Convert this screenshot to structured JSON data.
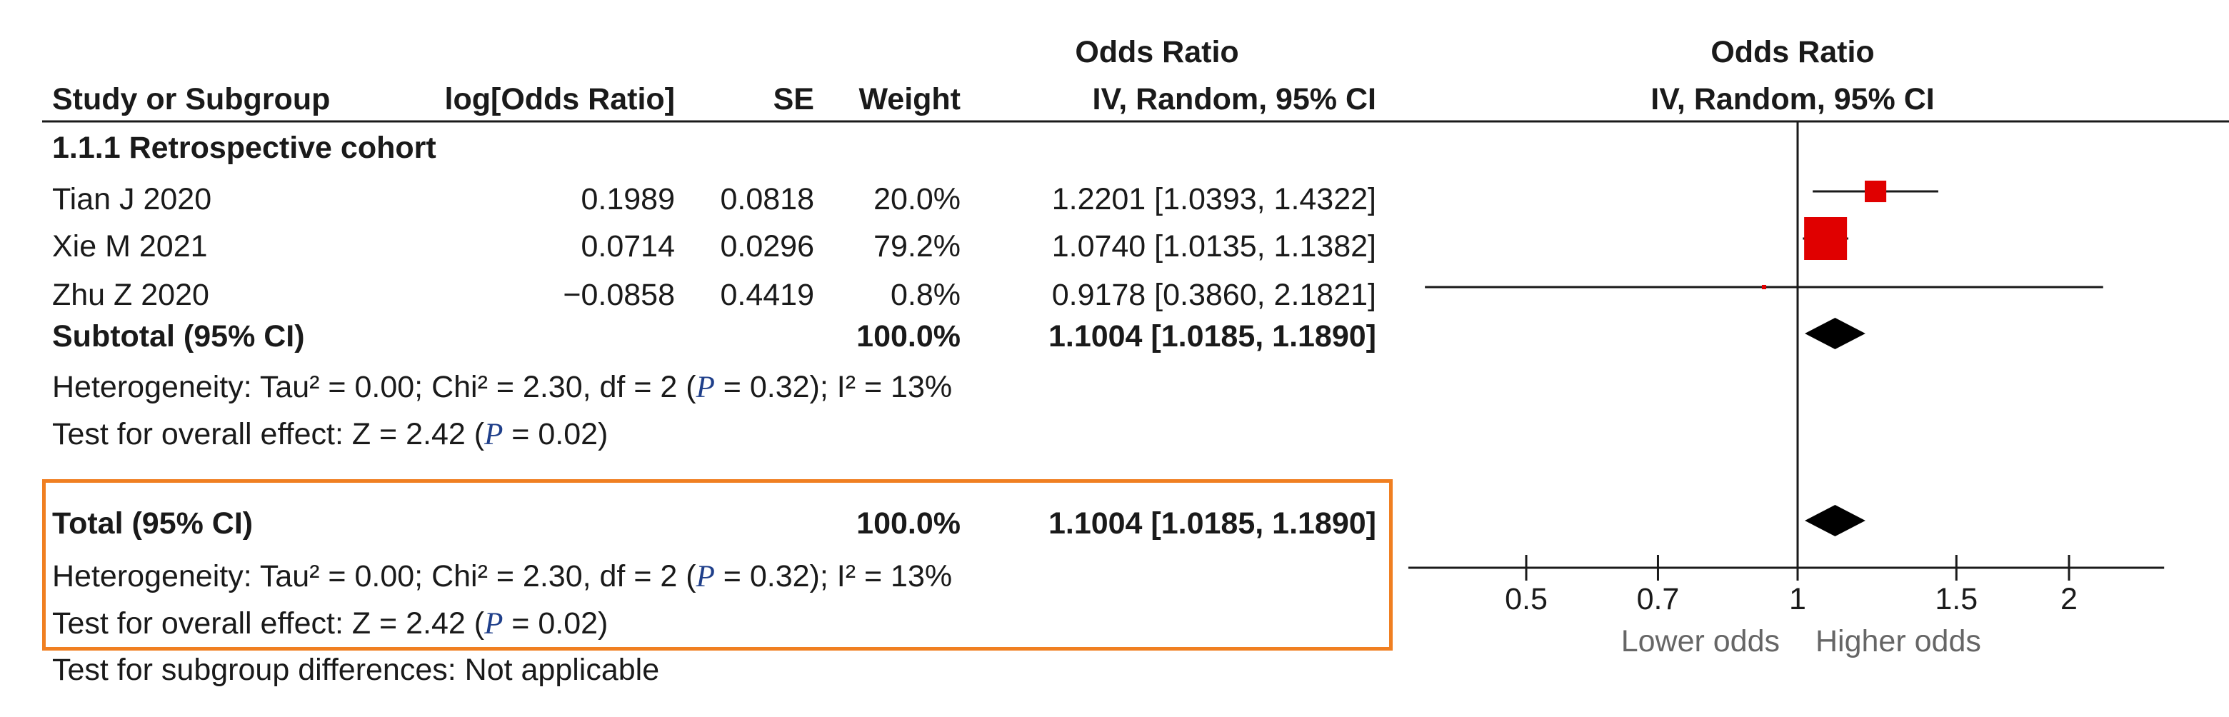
{
  "table": {
    "header_group_left": "Odds Ratio",
    "header_group_right": "Odds Ratio",
    "col_study": "Study or Subgroup",
    "col_logor": "log[Odds Ratio]",
    "col_se": "SE",
    "col_weight": "Weight",
    "col_ci": "IV, Random, 95% CI",
    "col_ci_right": "IV, Random, 95% CI",
    "subgroup_title": "1.1.1 Retrospective cohort",
    "subtotal": {
      "label": "Subtotal (95% CI)",
      "weight": "100.0%",
      "ci": "1.1004 [1.0185, 1.1890]"
    },
    "heterogeneity_sub": {
      "prefix": "Heterogeneity: Tau² = 0.00; Chi² = 2.30, df = 2 (",
      "p": "P",
      "suffix": " = 0.32); I² = 13%"
    },
    "overall_sub": {
      "prefix": "Test for overall effect: Z = 2.42 (",
      "p": "P",
      "suffix": " = 0.02)"
    },
    "total": {
      "label": "Total (95% CI)",
      "weight": "100.0%",
      "ci": "1.1004 [1.0185, 1.1890]"
    },
    "heterogeneity_total": {
      "prefix": "Heterogeneity: Tau² = 0.00; Chi² = 2.30, df = 2 (",
      "p": "P",
      "suffix": " = 0.32); I² = 13%"
    },
    "overall_total": {
      "prefix": "Test for overall effect: Z = 2.42 (",
      "p": "P",
      "suffix": " = 0.02)"
    },
    "subgroup_diff": "Test for subgroup differences: Not applicable"
  },
  "chart_data": {
    "type": "scatter",
    "subtype": "forest-plot",
    "x_scale": "log",
    "xlim": [
      0.37,
      2.55
    ],
    "null_line": 1,
    "tick_labels": [
      "0.5",
      "0.7",
      "1",
      "1.5",
      "2"
    ],
    "ticks": [
      0.5,
      0.7,
      1,
      1.5,
      2
    ],
    "label_lower": "Lower odds",
    "label_higher": "Higher odds",
    "marker_color": "#e00000",
    "studies": [
      {
        "name": "Tian J 2020",
        "log_or": "0.1989",
        "se": "0.0818",
        "weight": "20.0%",
        "ci_text": "1.2201 [1.0393, 1.4322]",
        "or": 1.2201,
        "lo": 1.0393,
        "hi": 1.4322,
        "weight_value": 20.0
      },
      {
        "name": "Xie M 2021",
        "log_or": "0.0714",
        "se": "0.0296",
        "weight": "79.2%",
        "ci_text": "1.0740 [1.0135, 1.1382]",
        "or": 1.074,
        "lo": 1.0135,
        "hi": 1.1382,
        "weight_value": 79.2
      },
      {
        "name": "Zhu Z 2020",
        "log_or": "−0.0858",
        "se": "0.4419",
        "weight": "0.8%",
        "ci_text": "0.9178 [0.3860, 2.1821]",
        "or": 0.9178,
        "lo": 0.386,
        "hi": 2.1821,
        "weight_value": 0.8
      }
    ],
    "pooled": [
      {
        "name": "Subtotal",
        "or": 1.1004,
        "lo": 1.0185,
        "hi": 1.189
      },
      {
        "name": "Total",
        "or": 1.1004,
        "lo": 1.0185,
        "hi": 1.189
      }
    ]
  }
}
